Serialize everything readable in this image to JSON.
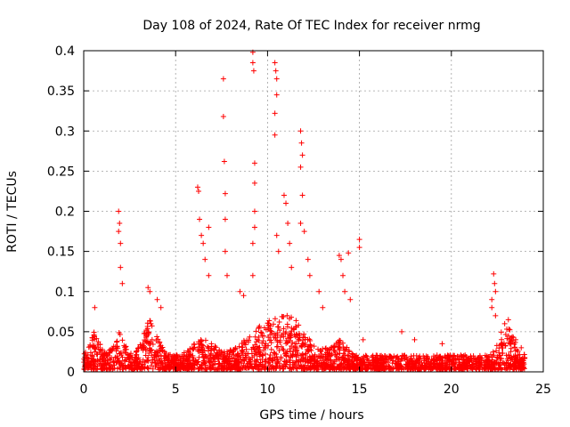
{
  "chart_data": {
    "type": "scatter",
    "title": "Day 108 of 2024, Rate Of TEC Index for receiver nrmg",
    "xlabel": "GPS time / hours",
    "ylabel": "ROTI / TECUs",
    "xlim": [
      0,
      25
    ],
    "ylim": [
      0,
      0.4
    ],
    "xticks": [
      0,
      5,
      10,
      15,
      20,
      25
    ],
    "yticks": [
      0,
      0.05,
      0.1,
      0.15,
      0.2,
      0.25,
      0.3,
      0.35,
      0.4
    ],
    "xtick_labels": [
      "0",
      "5",
      "10",
      "15",
      "20",
      "25"
    ],
    "ytick_labels": [
      "0",
      "0.05",
      "0.1",
      "0.15",
      "0.2",
      "0.25",
      "0.3",
      "0.35",
      "0.4"
    ],
    "grid": true,
    "marker": "+",
    "color": "#ff0000",
    "series": [
      {
        "name": "ROTI",
        "note": "dense scatter; main cloud 0-0.06 TECU across 0-24 h, representative outliers listed",
        "points": [
          [
            0.6,
            0.08
          ],
          [
            1.9,
            0.2
          ],
          [
            1.95,
            0.185
          ],
          [
            1.9,
            0.175
          ],
          [
            2.0,
            0.16
          ],
          [
            2.0,
            0.13
          ],
          [
            2.1,
            0.11
          ],
          [
            3.5,
            0.105
          ],
          [
            3.6,
            0.1
          ],
          [
            4.0,
            0.09
          ],
          [
            4.2,
            0.08
          ],
          [
            6.2,
            0.23
          ],
          [
            6.25,
            0.225
          ],
          [
            6.3,
            0.19
          ],
          [
            6.4,
            0.17
          ],
          [
            6.5,
            0.16
          ],
          [
            6.6,
            0.14
          ],
          [
            6.8,
            0.18
          ],
          [
            6.8,
            0.12
          ],
          [
            7.6,
            0.365
          ],
          [
            7.6,
            0.318
          ],
          [
            7.65,
            0.262
          ],
          [
            7.7,
            0.222
          ],
          [
            7.7,
            0.19
          ],
          [
            7.7,
            0.15
          ],
          [
            7.8,
            0.12
          ],
          [
            8.5,
            0.1
          ],
          [
            8.7,
            0.095
          ],
          [
            9.2,
            0.398
          ],
          [
            9.2,
            0.385
          ],
          [
            9.25,
            0.375
          ],
          [
            9.3,
            0.26
          ],
          [
            9.3,
            0.235
          ],
          [
            9.3,
            0.2
          ],
          [
            9.3,
            0.18
          ],
          [
            9.2,
            0.16
          ],
          [
            9.2,
            0.12
          ],
          [
            10.4,
            0.385
          ],
          [
            10.45,
            0.375
          ],
          [
            10.5,
            0.365
          ],
          [
            10.5,
            0.345
          ],
          [
            10.4,
            0.322
          ],
          [
            10.4,
            0.295
          ],
          [
            10.5,
            0.17
          ],
          [
            10.6,
            0.15
          ],
          [
            10.9,
            0.22
          ],
          [
            11.0,
            0.21
          ],
          [
            11.1,
            0.185
          ],
          [
            11.2,
            0.16
          ],
          [
            11.3,
            0.13
          ],
          [
            11.8,
            0.3
          ],
          [
            11.85,
            0.285
          ],
          [
            11.9,
            0.27
          ],
          [
            11.8,
            0.255
          ],
          [
            11.9,
            0.22
          ],
          [
            11.8,
            0.185
          ],
          [
            12.0,
            0.175
          ],
          [
            12.2,
            0.14
          ],
          [
            12.3,
            0.12
          ],
          [
            12.8,
            0.1
          ],
          [
            13.0,
            0.08
          ],
          [
            13.9,
            0.145
          ],
          [
            14.0,
            0.14
          ],
          [
            14.1,
            0.12
          ],
          [
            14.2,
            0.1
          ],
          [
            14.4,
            0.148
          ],
          [
            14.5,
            0.09
          ],
          [
            15.0,
            0.165
          ],
          [
            15.0,
            0.155
          ],
          [
            15.2,
            0.04
          ],
          [
            17.3,
            0.05
          ],
          [
            18.0,
            0.04
          ],
          [
            19.5,
            0.035
          ],
          [
            22.3,
            0.122
          ],
          [
            22.35,
            0.11
          ],
          [
            22.4,
            0.1
          ],
          [
            22.2,
            0.09
          ],
          [
            22.2,
            0.08
          ],
          [
            22.4,
            0.07
          ],
          [
            22.9,
            0.06
          ],
          [
            23.1,
            0.065
          ],
          [
            23.5,
            0.04
          ],
          [
            23.8,
            0.03
          ]
        ]
      }
    ]
  }
}
